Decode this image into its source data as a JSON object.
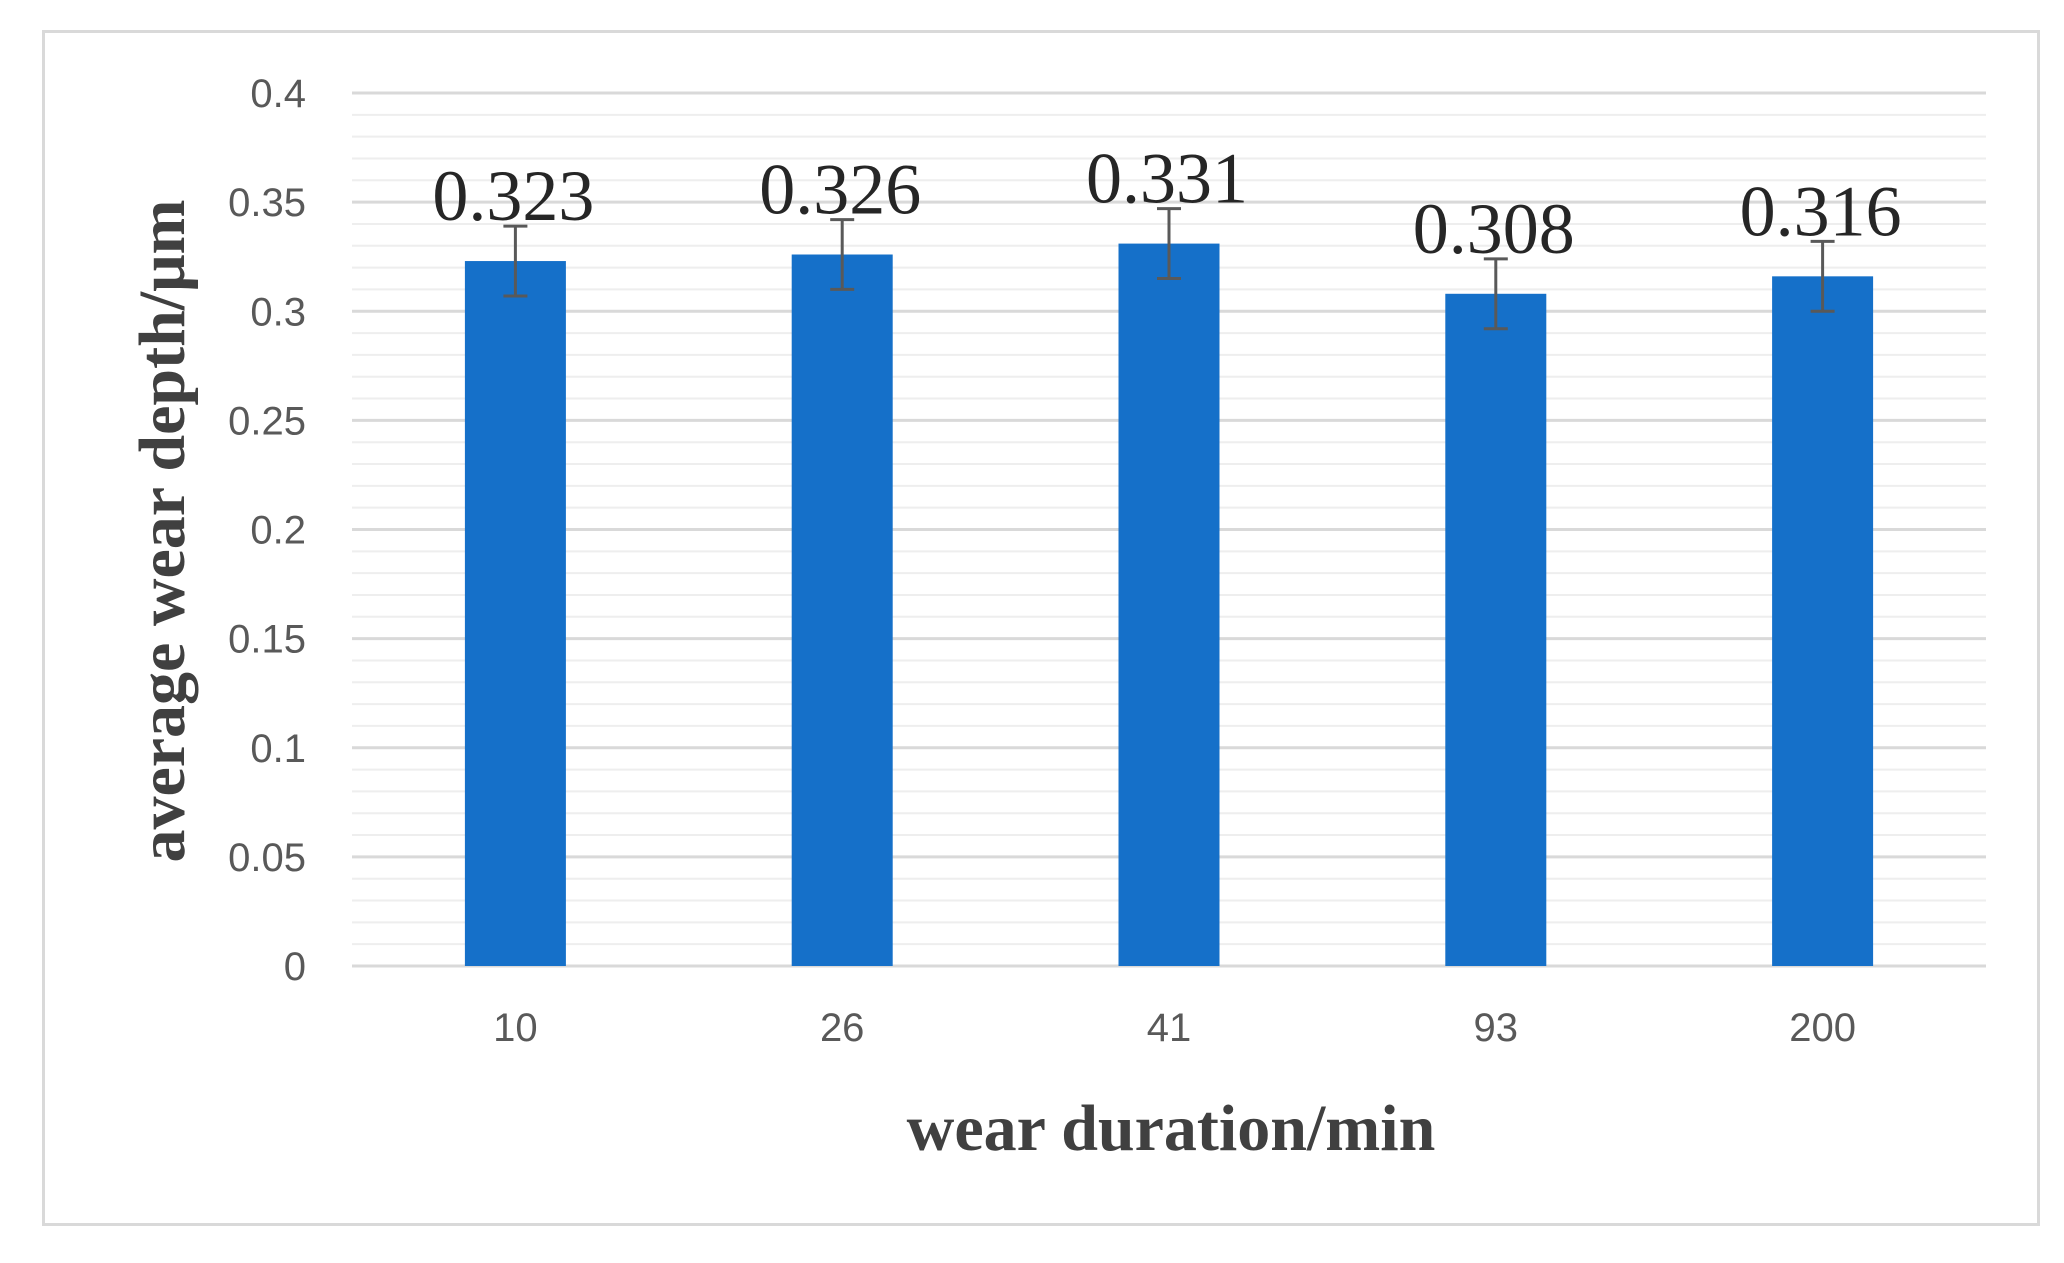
{
  "chart_data": {
    "type": "bar",
    "categories": [
      "10",
      "26",
      "41",
      "93",
      "200"
    ],
    "values": [
      0.323,
      0.326,
      0.331,
      0.308,
      0.316
    ],
    "error": [
      0.016,
      0.016,
      0.016,
      0.016,
      0.016
    ],
    "data_labels": [
      "0.323",
      "0.326",
      "0.331",
      "0.308",
      "0.316"
    ],
    "xlabel": "wear duration/min",
    "ylabel": "average wear depth/μm",
    "ylim": [
      0,
      0.4
    ],
    "yticks": [
      0,
      0.05,
      0.1,
      0.15,
      0.2,
      0.25,
      0.3,
      0.35,
      0.4
    ],
    "ytick_labels": [
      "0",
      "0.05",
      "0.1",
      "0.15",
      "0.2",
      "0.25",
      "0.3",
      "0.35",
      "0.4"
    ],
    "minor_step": 0.01,
    "grid": true,
    "legend": "none",
    "colors": {
      "bar": "#1570c9",
      "error_bar": "#595959",
      "major_grid": "#d9d9d9",
      "minor_grid": "#eeeeee"
    }
  }
}
